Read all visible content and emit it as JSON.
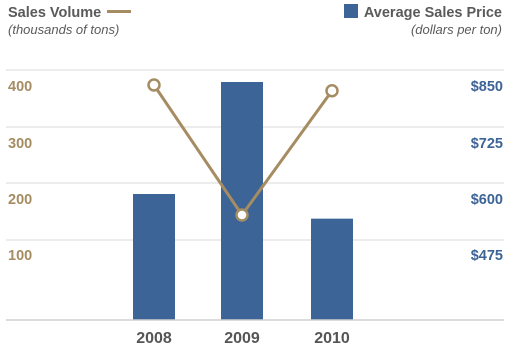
{
  "chart_data": {
    "type": "bar+line",
    "categories": [
      "2008",
      "2009",
      "2010"
    ],
    "series": [
      {
        "name": "Average Sales Price",
        "unit": "(dollars per ton)",
        "type": "bar",
        "axis": "right",
        "color": "#3c6496",
        "values": [
          600,
          850,
          545
        ]
      },
      {
        "name": "Sales Volume",
        "unit": "(thousands of tons)",
        "type": "line",
        "axis": "left",
        "color": "#a68c62",
        "values": [
          405,
          180,
          395
        ]
      }
    ],
    "left_axis": {
      "ticks": [
        "100",
        "200",
        "300",
        "400"
      ],
      "tick_values": [
        100,
        200,
        300,
        400
      ],
      "range": [
        0,
        460
      ]
    },
    "right_axis": {
      "ticks": [
        "$475",
        "$600",
        "$725",
        "$850"
      ],
      "tick_values": [
        475,
        600,
        725,
        850
      ],
      "range": [
        250,
        1000
      ]
    },
    "grid": true,
    "legend": {
      "line_position": "top-left",
      "bar_position": "top-right"
    }
  }
}
